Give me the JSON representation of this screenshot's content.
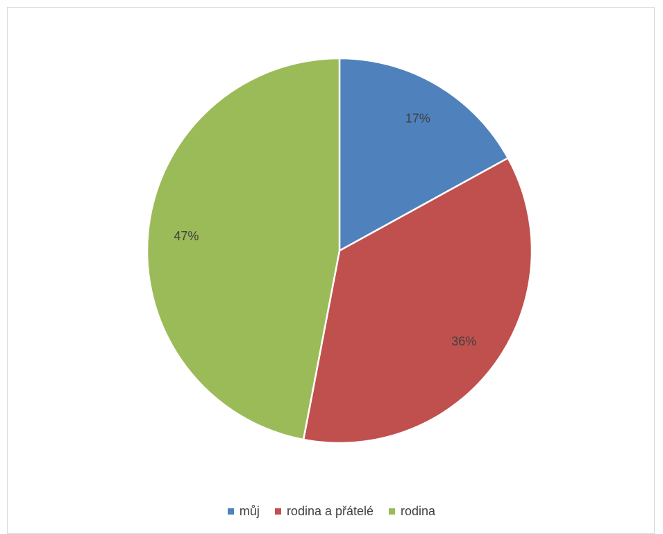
{
  "chart_data": {
    "type": "pie",
    "categories": [
      "můj",
      "rodina a přátelé",
      "rodina"
    ],
    "values": [
      17,
      36,
      47
    ],
    "labels": [
      "17%",
      "36%",
      "47%"
    ],
    "colors": [
      "#4f81bd",
      "#c0504d",
      "#9bbb59"
    ],
    "legend_position": "bottom"
  },
  "legend": {
    "items": [
      {
        "label": "můj",
        "color": "#4f81bd"
      },
      {
        "label": "rodina a přátelé",
        "color": "#c0504d"
      },
      {
        "label": "rodina",
        "color": "#9bbb59"
      }
    ]
  }
}
